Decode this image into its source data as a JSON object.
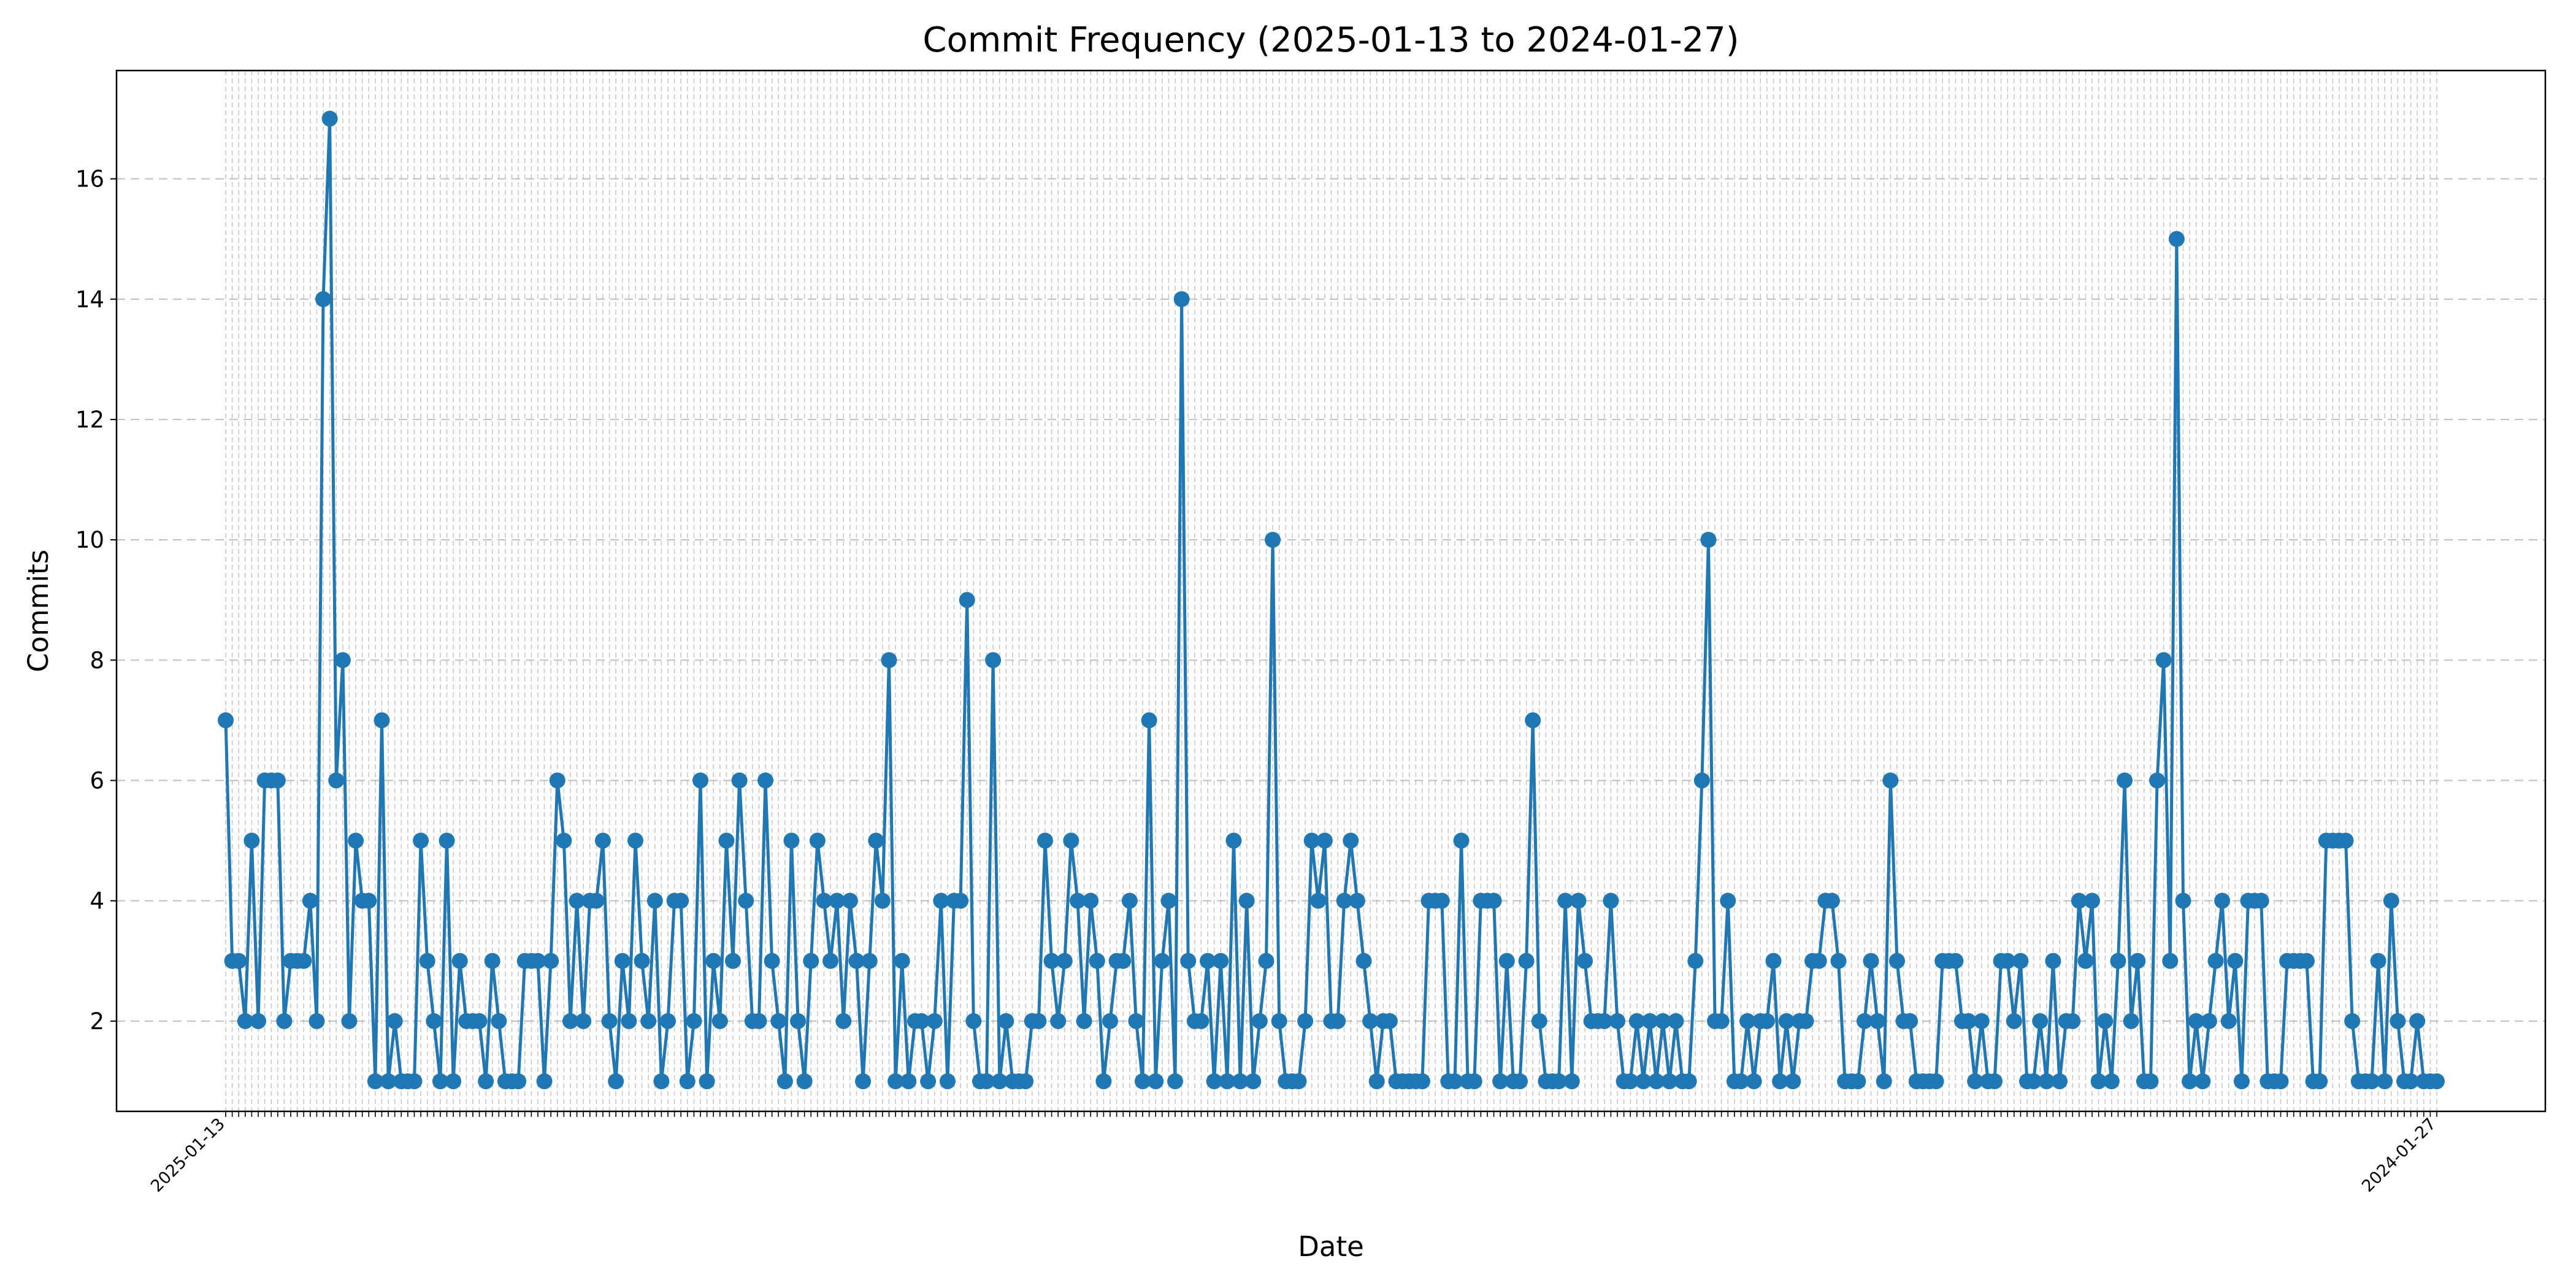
{
  "chart_data": {
    "type": "line",
    "title": "Commit Frequency (2025-01-13 to 2024-01-27)",
    "xlabel": "Date",
    "ylabel": "Commits",
    "ylim": [
      0.5,
      17.8
    ],
    "yticks": [
      2,
      4,
      6,
      8,
      10,
      12,
      14,
      16
    ],
    "grid": true,
    "x_start_label": "2025-01-13",
    "x_end_label": "2024-01-27",
    "series": [
      {
        "color": "#1f77b4",
        "values": [
          7,
          3,
          3,
          2,
          5,
          2,
          6,
          6,
          6,
          2,
          3,
          3,
          3,
          4,
          2,
          14,
          17,
          6,
          8,
          2,
          5,
          4,
          4,
          1,
          7,
          1,
          2,
          1,
          1,
          1,
          5,
          3,
          2,
          1,
          5,
          1,
          3,
          2,
          2,
          2,
          1,
          3,
          2,
          1,
          1,
          1,
          3,
          3,
          3,
          1,
          3,
          6,
          5,
          2,
          4,
          2,
          4,
          4,
          5,
          2,
          1,
          3,
          2,
          5,
          3,
          2,
          4,
          1,
          2,
          4,
          4,
          1,
          2,
          6,
          1,
          3,
          2,
          5,
          3,
          6,
          4,
          2,
          2,
          6,
          3,
          2,
          1,
          5,
          2,
          1,
          3,
          5,
          4,
          3,
          4,
          2,
          4,
          3,
          1,
          3,
          5,
          4,
          8,
          1,
          3,
          1,
          2,
          2,
          1,
          2,
          4,
          1,
          4,
          4,
          9,
          2,
          1,
          1,
          8,
          1,
          2,
          1,
          1,
          1,
          2,
          2,
          5,
          3,
          2,
          3,
          5,
          4,
          2,
          4,
          3,
          1,
          2,
          3,
          3,
          4,
          2,
          1,
          7,
          1,
          3,
          4,
          1,
          14,
          3,
          2,
          2,
          3,
          1,
          3,
          1,
          5,
          1,
          4,
          1,
          2,
          3,
          10,
          2,
          1,
          1,
          1,
          2,
          5,
          4,
          5,
          2,
          2,
          4,
          5,
          4,
          3,
          2,
          1,
          2,
          2,
          1,
          1,
          1,
          1,
          1,
          4,
          4,
          4,
          1,
          1,
          5,
          1,
          1,
          4,
          4,
          4,
          1,
          3,
          1,
          1,
          3,
          7,
          2,
          1,
          1,
          1,
          4,
          1,
          4,
          3,
          2,
          2,
          2,
          4,
          2,
          1,
          1,
          2,
          1,
          2,
          1,
          2,
          1,
          2,
          1,
          1,
          3,
          6,
          10,
          2,
          2,
          4,
          1,
          1,
          2,
          1,
          2,
          2,
          3,
          1,
          2,
          1,
          2,
          2,
          3,
          3,
          4,
          4,
          3,
          1,
          1,
          1,
          2,
          3,
          2,
          1,
          6,
          3,
          2,
          2,
          1,
          1,
          1,
          1,
          3,
          3,
          3,
          2,
          2,
          1,
          2,
          1,
          1,
          3,
          3,
          2,
          3,
          1,
          1,
          2,
          1,
          3,
          1,
          2,
          2,
          4,
          3,
          4,
          1,
          2,
          1,
          3,
          6,
          2,
          3,
          1,
          1,
          6,
          8,
          3,
          15,
          4,
          1,
          2,
          1,
          2,
          3,
          4,
          2,
          3,
          1,
          4,
          4,
          4,
          1,
          1,
          1,
          3,
          3,
          3,
          3,
          1,
          1,
          5,
          5,
          5,
          5,
          2,
          1,
          1,
          1,
          3,
          1,
          4,
          2,
          1,
          1,
          2,
          1,
          1,
          1
        ]
      }
    ]
  }
}
